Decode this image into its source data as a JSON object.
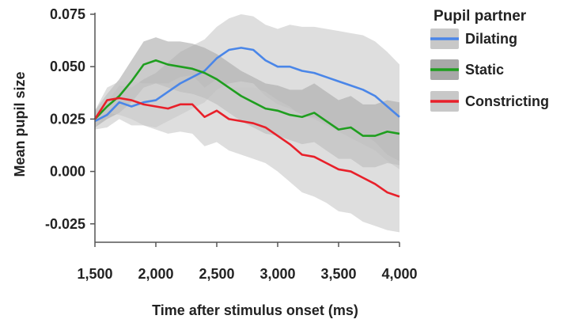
{
  "chart_data": {
    "type": "line",
    "title": "",
    "xlabel": "Time after stimulus onset (ms)",
    "ylabel": "Mean pupil size",
    "xlim": [
      1500,
      4000
    ],
    "ylim": [
      -0.03,
      0.075
    ],
    "x_ticks": [
      1500,
      2000,
      2500,
      3000,
      3500,
      4000
    ],
    "x_tick_labels": [
      "1,500",
      "2,000",
      "2,500",
      "3,000",
      "3,500",
      "4,000"
    ],
    "y_ticks": [
      0.075,
      0.05,
      0.025,
      0.0,
      -0.025
    ],
    "y_tick_labels": [
      "0.075",
      "0.050",
      "0.025",
      "0.000",
      "-0.025"
    ],
    "grid": false,
    "legend": {
      "title": "Pupil partner",
      "position": "right"
    },
    "series": [
      {
        "name": "Dilating",
        "color": "#4a86e8",
        "band_color": "#c8c8c8",
        "x": [
          1500,
          1600,
          1700,
          1800,
          1900,
          2000,
          2100,
          2200,
          2300,
          2400,
          2500,
          2600,
          2700,
          2800,
          2900,
          3000,
          3100,
          3200,
          3300,
          3400,
          3500,
          3600,
          3700,
          3800,
          3900,
          4000
        ],
        "y": [
          0.024,
          0.027,
          0.033,
          0.031,
          0.033,
          0.034,
          0.038,
          0.042,
          0.045,
          0.048,
          0.054,
          0.058,
          0.059,
          0.058,
          0.053,
          0.05,
          0.05,
          0.048,
          0.047,
          0.045,
          0.043,
          0.041,
          0.039,
          0.036,
          0.031,
          0.026
        ],
        "lower": [
          0.02,
          0.021,
          0.025,
          0.022,
          0.022,
          0.021,
          0.024,
          0.027,
          0.03,
          0.033,
          0.039,
          0.042,
          0.043,
          0.042,
          0.036,
          0.032,
          0.03,
          0.027,
          0.025,
          0.022,
          0.019,
          0.016,
          0.013,
          0.01,
          0.005,
          0.001
        ],
        "upper": [
          0.028,
          0.033,
          0.041,
          0.04,
          0.044,
          0.047,
          0.052,
          0.057,
          0.06,
          0.063,
          0.069,
          0.073,
          0.075,
          0.074,
          0.07,
          0.068,
          0.07,
          0.069,
          0.069,
          0.068,
          0.067,
          0.066,
          0.065,
          0.062,
          0.057,
          0.051
        ]
      },
      {
        "name": "Static",
        "color": "#1f9e1f",
        "band_color": "#a8a8a8",
        "x": [
          1500,
          1600,
          1700,
          1800,
          1900,
          2000,
          2100,
          2200,
          2300,
          2400,
          2500,
          2600,
          2700,
          2800,
          2900,
          3000,
          3100,
          3200,
          3300,
          3400,
          3500,
          3600,
          3700,
          3800,
          3900,
          4000
        ],
        "y": [
          0.025,
          0.031,
          0.036,
          0.043,
          0.051,
          0.053,
          0.051,
          0.05,
          0.049,
          0.047,
          0.044,
          0.04,
          0.036,
          0.033,
          0.03,
          0.029,
          0.027,
          0.026,
          0.028,
          0.024,
          0.02,
          0.021,
          0.017,
          0.017,
          0.019,
          0.018
        ],
        "lower": [
          0.021,
          0.025,
          0.028,
          0.033,
          0.04,
          0.042,
          0.04,
          0.038,
          0.037,
          0.035,
          0.032,
          0.028,
          0.024,
          0.021,
          0.018,
          0.017,
          0.015,
          0.013,
          0.014,
          0.01,
          0.006,
          0.006,
          0.002,
          0.002,
          0.004,
          0.003
        ],
        "upper": [
          0.029,
          0.037,
          0.044,
          0.053,
          0.062,
          0.064,
          0.062,
          0.062,
          0.061,
          0.059,
          0.056,
          0.052,
          0.048,
          0.045,
          0.042,
          0.041,
          0.039,
          0.039,
          0.042,
          0.038,
          0.034,
          0.036,
          0.032,
          0.032,
          0.034,
          0.033
        ]
      },
      {
        "name": "Constricting",
        "color": "#e8202a",
        "band_color": "#c8c8c8",
        "x": [
          1500,
          1600,
          1700,
          1800,
          1900,
          2000,
          2100,
          2200,
          2300,
          2400,
          2500,
          2600,
          2700,
          2800,
          2900,
          3000,
          3100,
          3200,
          3300,
          3400,
          3500,
          3600,
          3700,
          3800,
          3900,
          4000
        ],
        "y": [
          0.025,
          0.034,
          0.035,
          0.034,
          0.032,
          0.031,
          0.03,
          0.032,
          0.032,
          0.026,
          0.029,
          0.025,
          0.024,
          0.023,
          0.021,
          0.017,
          0.013,
          0.008,
          0.007,
          0.004,
          0.001,
          0.0,
          -0.003,
          -0.006,
          -0.01,
          -0.012
        ],
        "lower": [
          0.021,
          0.028,
          0.027,
          0.025,
          0.022,
          0.02,
          0.018,
          0.019,
          0.018,
          0.012,
          0.014,
          0.01,
          0.008,
          0.006,
          0.004,
          0.0,
          -0.005,
          -0.01,
          -0.012,
          -0.015,
          -0.019,
          -0.02,
          -0.024,
          -0.026,
          -0.028,
          -0.029
        ],
        "upper": [
          0.029,
          0.04,
          0.043,
          0.043,
          0.042,
          0.042,
          0.042,
          0.045,
          0.046,
          0.04,
          0.044,
          0.04,
          0.04,
          0.04,
          0.038,
          0.034,
          0.031,
          0.026,
          0.026,
          0.023,
          0.021,
          0.02,
          0.018,
          0.014,
          0.008,
          0.005
        ]
      }
    ]
  }
}
